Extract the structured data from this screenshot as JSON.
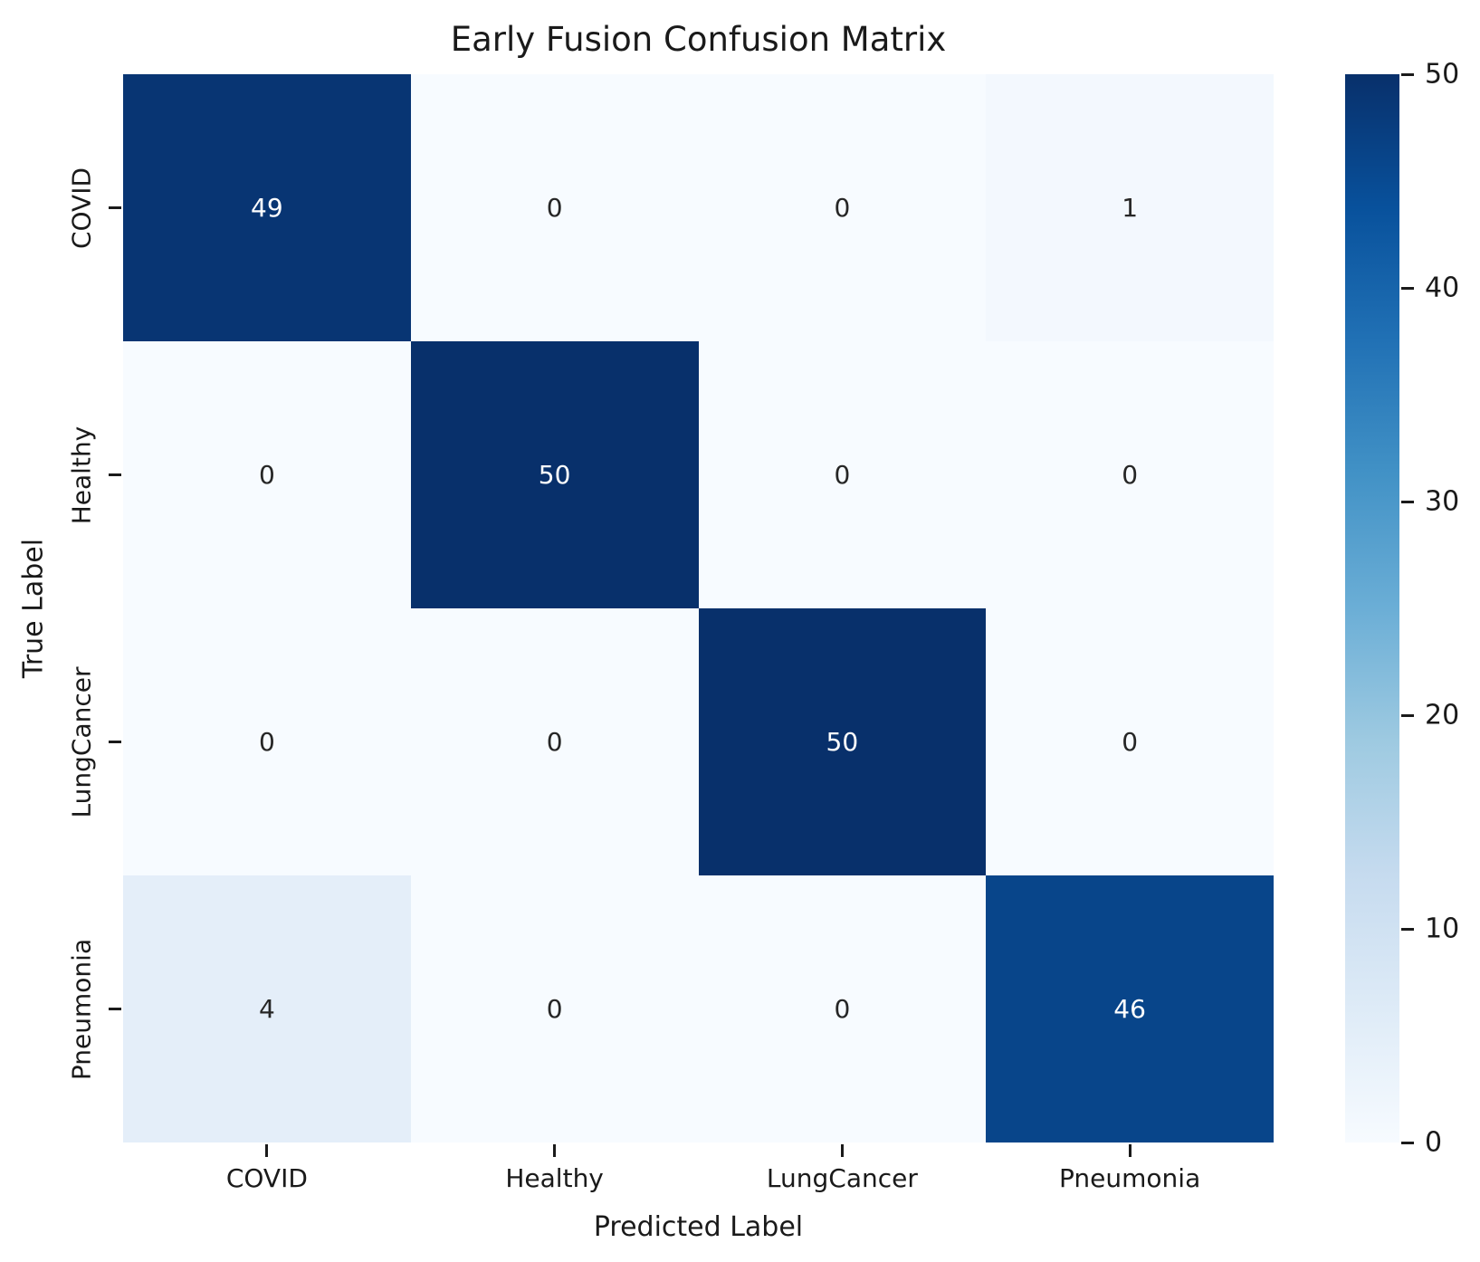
{
  "chart_data": {
    "type": "heatmap",
    "title": "Early Fusion Confusion Matrix",
    "xlabel": "Predicted Label",
    "ylabel": "True Label",
    "x_categories": [
      "COVID",
      "Healthy",
      "LungCancer",
      "Pneumonia"
    ],
    "y_categories": [
      "COVID",
      "Healthy",
      "LungCancer",
      "Pneumonia"
    ],
    "matrix": [
      [
        49,
        0,
        0,
        1
      ],
      [
        0,
        50,
        0,
        0
      ],
      [
        0,
        0,
        50,
        0
      ],
      [
        4,
        0,
        0,
        46
      ]
    ],
    "vmin": 0,
    "vmax": 50,
    "colormap": "Blues",
    "colorbar_ticks": [
      0,
      10,
      20,
      30,
      40,
      50
    ],
    "legend_position": "right-colorbar",
    "grid": false,
    "colors": {
      "cell_colors": [
        [
          "#083573",
          "#f7fbff",
          "#f7fbff",
          "#f3f8fe"
        ],
        [
          "#f7fbff",
          "#08306b",
          "#f7fbff",
          "#f7fbff"
        ],
        [
          "#f7fbff",
          "#f7fbff",
          "#08306b",
          "#f7fbff"
        ],
        [
          "#e4eef9",
          "#f7fbff",
          "#f7fbff",
          "#08458a"
        ]
      ],
      "annotation_light": "#ffffff",
      "annotation_dark": "#262626",
      "colorbar_gradient_bottom_to_top": [
        "#f7fbff",
        "#deebf7",
        "#c6dbef",
        "#9ecae1",
        "#6baed6",
        "#4292c6",
        "#2171b5",
        "#08519c",
        "#08306b"
      ]
    }
  }
}
